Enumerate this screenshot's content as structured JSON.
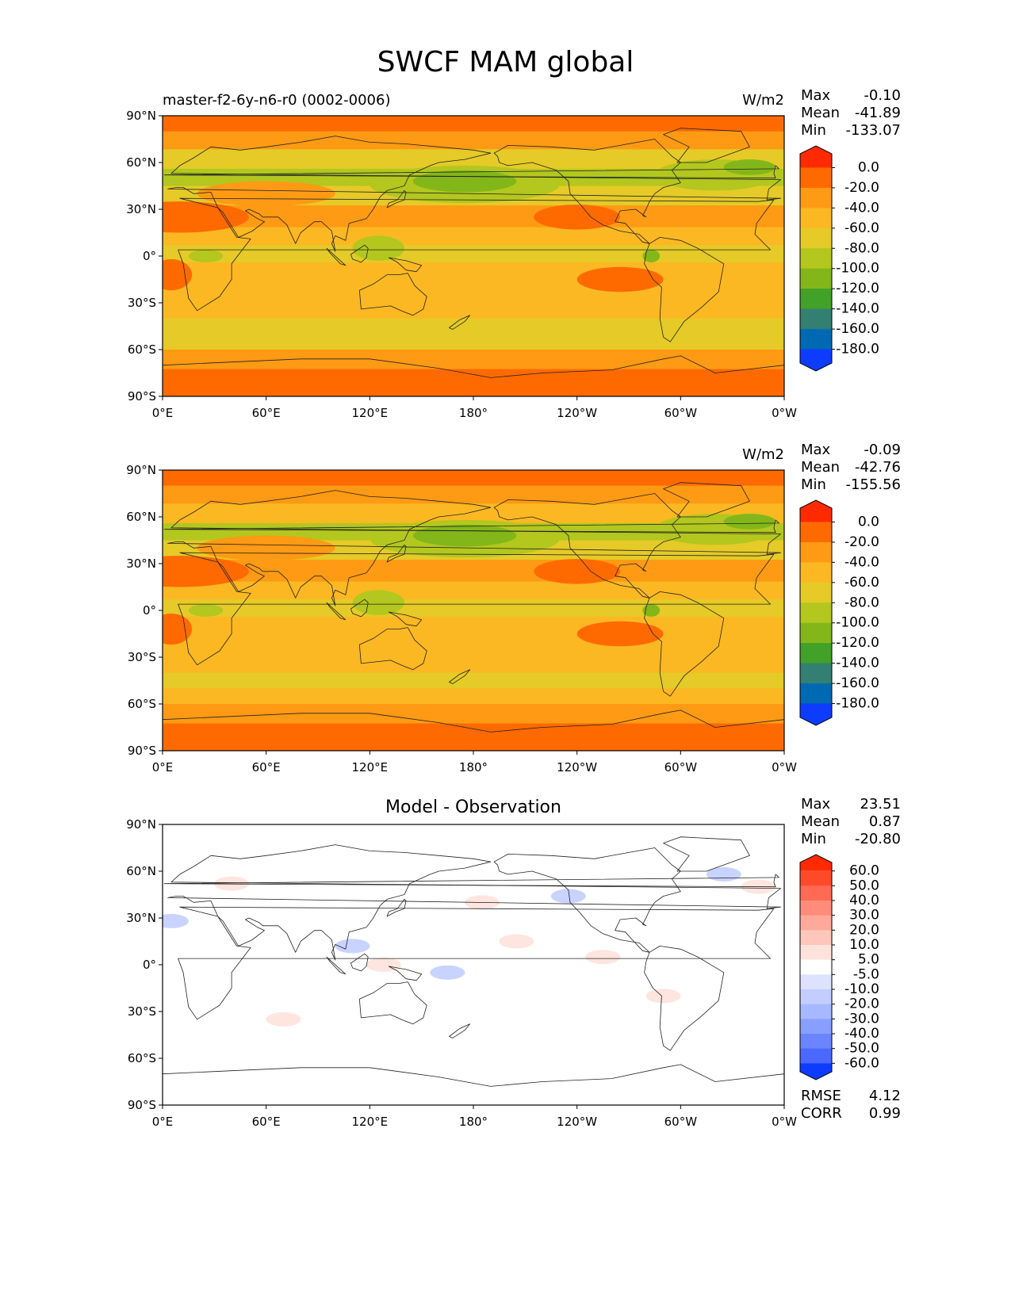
{
  "figure_title": "SWCF MAM global",
  "panels": [
    {
      "title": "",
      "subtitle_left": "master-f2-6y-n6-r0 (0002-0006)",
      "units": "W/m2",
      "stats": [
        {
          "label": "Max",
          "value": "-0.10"
        },
        {
          "label": "Mean",
          "value": "-41.89"
        },
        {
          "label": "Min",
          "value": "-133.07"
        }
      ],
      "cbar_labels": [
        "0.0",
        "-20.0",
        "-40.0",
        "-60.0",
        "-80.0",
        "-100.0",
        "-120.0",
        "-140.0",
        "-160.0",
        "-180.0"
      ]
    },
    {
      "title": "",
      "subtitle_left": "",
      "units": "W/m2",
      "stats": [
        {
          "label": "Max",
          "value": "-0.09"
        },
        {
          "label": "Mean",
          "value": "-42.76"
        },
        {
          "label": "Min",
          "value": "-155.56"
        }
      ],
      "cbar_labels": [
        "0.0",
        "-20.0",
        "-40.0",
        "-60.0",
        "-80.0",
        "-100.0",
        "-120.0",
        "-140.0",
        "-160.0",
        "-180.0"
      ]
    },
    {
      "title": "Model - Observation",
      "subtitle_left": "",
      "units": "",
      "stats": [
        {
          "label": "Max",
          "value": "23.51"
        },
        {
          "label": "Mean",
          "value": "0.87"
        },
        {
          "label": "Min",
          "value": "-20.80"
        }
      ],
      "extra_stats": [
        {
          "label": "RMSE",
          "value": "4.12"
        },
        {
          "label": "CORR",
          "value": "0.99"
        }
      ],
      "cbar_labels": [
        "60.0",
        "50.0",
        "40.0",
        "30.0",
        "20.0",
        "10.0",
        "5.0",
        "-5.0",
        "-10.0",
        "-20.0",
        "-30.0",
        "-40.0",
        "-50.0",
        "-60.0"
      ]
    }
  ],
  "chart_data": [
    {
      "type": "heatmap",
      "title": "",
      "xlabel": "",
      "ylabel": "",
      "xticks": [
        "0°E",
        "60°E",
        "120°E",
        "180°",
        "120°W",
        "60°W",
        "0°W"
      ],
      "yticks": [
        "90°N",
        "60°N",
        "30°N",
        "0°",
        "30°S",
        "60°S",
        "90°S"
      ],
      "xlim": [
        0,
        360
      ],
      "ylim": [
        -90,
        90
      ],
      "colorbar": {
        "levels": [
          0,
          -20,
          -40,
          -60,
          -80,
          -100,
          -120,
          -140,
          -160,
          -180
        ],
        "colors": [
          "#ff2a00",
          "#ff6a00",
          "#ff9a14",
          "#fbb822",
          "#e5ca28",
          "#b3c71e",
          "#83b719",
          "#41a128",
          "#338072",
          "#0069b3",
          "#0d3cff"
        ]
      },
      "zonal_profile": [
        {
          "lat": 85,
          "value": -10
        },
        {
          "lat": 75,
          "value": -35
        },
        {
          "lat": 62,
          "value": -60
        },
        {
          "lat": 50,
          "value": -80
        },
        {
          "lat": 40,
          "value": -62
        },
        {
          "lat": 25,
          "value": -35
        },
        {
          "lat": 12,
          "value": -52
        },
        {
          "lat": 2,
          "value": -70
        },
        {
          "lat": -10,
          "value": -45
        },
        {
          "lat": -20,
          "value": -40
        },
        {
          "lat": -35,
          "value": -52
        },
        {
          "lat": -45,
          "value": -64
        },
        {
          "lat": -55,
          "value": -60
        },
        {
          "lat": -65,
          "value": -30
        },
        {
          "lat": -80,
          "value": -10
        }
      ]
    },
    {
      "type": "heatmap",
      "title": "",
      "xlabel": "",
      "ylabel": "",
      "xticks": [
        "0°E",
        "60°E",
        "120°E",
        "180°",
        "120°W",
        "60°W",
        "0°W"
      ],
      "yticks": [
        "90°N",
        "60°N",
        "30°N",
        "0°",
        "30°S",
        "60°S",
        "90°S"
      ],
      "xlim": [
        0,
        360
      ],
      "ylim": [
        -90,
        90
      ],
      "colorbar": {
        "levels": [
          0,
          -20,
          -40,
          -60,
          -80,
          -100,
          -120,
          -140,
          -160,
          -180
        ],
        "colors": [
          "#ff2a00",
          "#ff6a00",
          "#ff9a14",
          "#fbb822",
          "#e5ca28",
          "#b3c71e",
          "#83b719",
          "#41a128",
          "#338072",
          "#0069b3",
          "#0d3cff"
        ]
      },
      "zonal_profile": [
        {
          "lat": 85,
          "value": -10
        },
        {
          "lat": 75,
          "value": -38
        },
        {
          "lat": 62,
          "value": -55
        },
        {
          "lat": 50,
          "value": -85
        },
        {
          "lat": 40,
          "value": -60
        },
        {
          "lat": 25,
          "value": -38
        },
        {
          "lat": 12,
          "value": -50
        },
        {
          "lat": 2,
          "value": -65
        },
        {
          "lat": -10,
          "value": -48
        },
        {
          "lat": -20,
          "value": -42
        },
        {
          "lat": -35,
          "value": -50
        },
        {
          "lat": -45,
          "value": -62
        },
        {
          "lat": -55,
          "value": -58
        },
        {
          "lat": -65,
          "value": -30
        },
        {
          "lat": -80,
          "value": -10
        }
      ]
    },
    {
      "type": "heatmap",
      "title": "Model - Observation",
      "xlabel": "",
      "ylabel": "",
      "xticks": [
        "0°E",
        "60°E",
        "120°E",
        "180°",
        "120°W",
        "60°W",
        "0°W"
      ],
      "yticks": [
        "90°N",
        "60°N",
        "30°N",
        "0°",
        "30°S",
        "60°S",
        "90°S"
      ],
      "xlim": [
        0,
        360
      ],
      "ylim": [
        -90,
        90
      ],
      "colorbar": {
        "levels": [
          60,
          50,
          40,
          30,
          20,
          10,
          5,
          -5,
          -10,
          -20,
          -30,
          -40,
          -50,
          -60
        ],
        "colors": [
          "#ff2a00",
          "#ff4a2a",
          "#ff6a55",
          "#ff8c7a",
          "#ffa99a",
          "#ffc6bc",
          "#ffe2dc",
          "#ffffff",
          "#dde3ff",
          "#c3ceff",
          "#a6b8ff",
          "#889fff",
          "#6a85ff",
          "#4a68ff",
          "#0d3cff"
        ]
      },
      "anomalies": [
        {
          "lon": 40,
          "lat": 52,
          "value": 10
        },
        {
          "lon": 5,
          "lat": 28,
          "value": -10
        },
        {
          "lon": 110,
          "lat": 12,
          "value": -10
        },
        {
          "lon": 165,
          "lat": -5,
          "value": -10
        },
        {
          "lon": 235,
          "lat": 44,
          "value": -10
        },
        {
          "lon": 205,
          "lat": 15,
          "value": 10
        },
        {
          "lon": 185,
          "lat": 40,
          "value": 10
        },
        {
          "lon": 325,
          "lat": 58,
          "value": -10
        },
        {
          "lon": 345,
          "lat": 50,
          "value": 10
        },
        {
          "lon": 290,
          "lat": -20,
          "value": 10
        },
        {
          "lon": 70,
          "lat": -35,
          "value": 10
        },
        {
          "lon": 255,
          "lat": 5,
          "value": 10
        },
        {
          "lon": 128,
          "lat": 0,
          "value": 10
        }
      ]
    }
  ]
}
